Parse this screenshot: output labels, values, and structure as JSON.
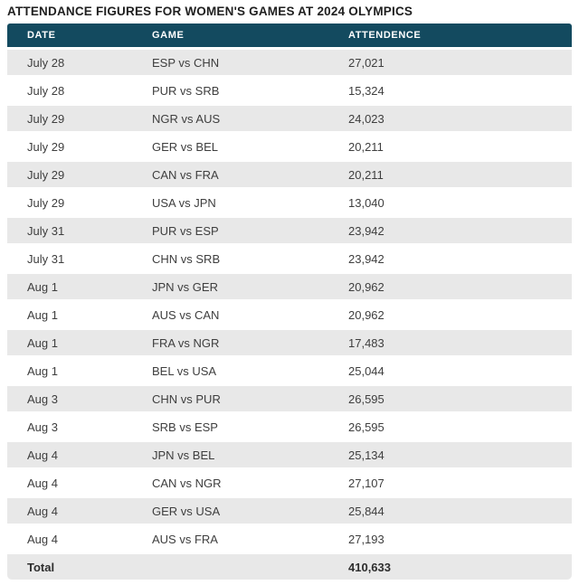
{
  "page": {
    "title": "ATTENDANCE FIGURES FOR WOMEN'S GAMES AT 2024 OLYMPICS"
  },
  "colors": {
    "header_bg": "#134A5F",
    "header_text": "#FFFFFF",
    "stripe_bg": "#E8E8E8",
    "row_bg": "#FFFFFF",
    "title_text": "#1F1F1F",
    "body_text": "#3E3E3E"
  },
  "table": {
    "columns": [
      {
        "key": "date",
        "label": "DATE"
      },
      {
        "key": "game",
        "label": "GAME"
      },
      {
        "key": "attendance",
        "label": "ATTENDENCE"
      }
    ],
    "rows": [
      {
        "date": "July 28",
        "game": "ESP vs CHN",
        "attendance": "27,021"
      },
      {
        "date": "July 28",
        "game": "PUR vs SRB",
        "attendance": "15,324"
      },
      {
        "date": "July 29",
        "game": "NGR vs AUS",
        "attendance": "24,023"
      },
      {
        "date": "July 29",
        "game": "GER vs BEL",
        "attendance": "20,211"
      },
      {
        "date": "July 29",
        "game": "CAN vs FRA",
        "attendance": "20,211"
      },
      {
        "date": "July 29",
        "game": "USA vs JPN",
        "attendance": "13,040"
      },
      {
        "date": "July 31",
        "game": "PUR vs ESP",
        "attendance": "23,942"
      },
      {
        "date": "July 31",
        "game": "CHN vs SRB",
        "attendance": "23,942"
      },
      {
        "date": "Aug 1",
        "game": "JPN vs GER",
        "attendance": "20,962"
      },
      {
        "date": "Aug 1",
        "game": "AUS vs CAN",
        "attendance": "20,962"
      },
      {
        "date": "Aug 1",
        "game": "FRA vs NGR",
        "attendance": "17,483"
      },
      {
        "date": "Aug 1",
        "game": "BEL vs USA",
        "attendance": "25,044"
      },
      {
        "date": "Aug 3",
        "game": "CHN vs PUR",
        "attendance": "26,595"
      },
      {
        "date": "Aug 3",
        "game": "SRB vs ESP",
        "attendance": "26,595"
      },
      {
        "date": "Aug 4",
        "game": "JPN vs BEL",
        "attendance": "25,134"
      },
      {
        "date": "Aug 4",
        "game": "CAN vs NGR",
        "attendance": "27,107"
      },
      {
        "date": "Aug 4",
        "game": "GER vs USA",
        "attendance": "25,844"
      },
      {
        "date": "Aug 4",
        "game": "AUS vs FRA",
        "attendance": "27,193"
      }
    ],
    "total": {
      "label": "Total",
      "attendance": "410,633"
    }
  },
  "chart_data": {
    "type": "table",
    "title": "ATTENDANCE FIGURES FOR WOMEN'S GAMES AT 2024 OLYMPICS",
    "columns": [
      "DATE",
      "GAME",
      "ATTENDENCE"
    ],
    "rows": [
      [
        "July 28",
        "ESP vs CHN",
        27021
      ],
      [
        "July 28",
        "PUR vs SRB",
        15324
      ],
      [
        "July 29",
        "NGR vs AUS",
        24023
      ],
      [
        "July 29",
        "GER vs BEL",
        20211
      ],
      [
        "July 29",
        "CAN vs FRA",
        20211
      ],
      [
        "July 29",
        "USA vs JPN",
        13040
      ],
      [
        "July 31",
        "PUR vs ESP",
        23942
      ],
      [
        "July 31",
        "CHN vs SRB",
        23942
      ],
      [
        "Aug 1",
        "JPN vs GER",
        20962
      ],
      [
        "Aug 1",
        "AUS vs CAN",
        20962
      ],
      [
        "Aug 1",
        "FRA vs NGR",
        17483
      ],
      [
        "Aug 1",
        "BEL vs USA",
        25044
      ],
      [
        "Aug 3",
        "CHN vs PUR",
        26595
      ],
      [
        "Aug 3",
        "SRB vs ESP",
        26595
      ],
      [
        "Aug 4",
        "JPN vs BEL",
        25134
      ],
      [
        "Aug 4",
        "CAN vs NGR",
        27107
      ],
      [
        "Aug 4",
        "GER vs USA",
        25844
      ],
      [
        "Aug 4",
        "AUS vs FRA",
        27193
      ]
    ],
    "total_label": "Total",
    "total": 410633,
    "layout": {
      "striped": true,
      "stripe_start": "first-row",
      "header_style": "dark-teal-bar"
    }
  }
}
